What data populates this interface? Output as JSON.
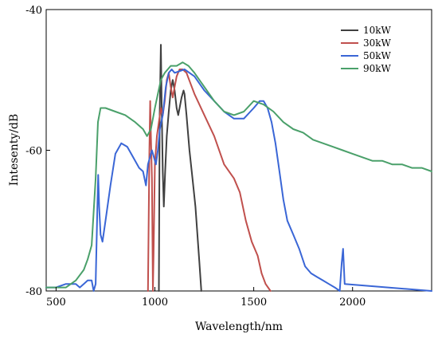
{
  "chart_data": {
    "type": "line",
    "title": "",
    "xlabel": "Wavelength/nm",
    "ylabel": "Intesenty/dB",
    "xlim": [
      450,
      2400
    ],
    "ylim": [
      -80,
      -40
    ],
    "xticks": [
      500,
      1000,
      1500,
      2000
    ],
    "yticks": [
      -40,
      -60,
      -80
    ],
    "grid": false,
    "legend": "top-right",
    "series": [
      {
        "name": "10kW",
        "color": "#404040",
        "points": [
          [
            1020,
            -80
          ],
          [
            1024,
            -55
          ],
          [
            1030,
            -45
          ],
          [
            1035,
            -55
          ],
          [
            1040,
            -63
          ],
          [
            1045,
            -68
          ],
          [
            1052,
            -63
          ],
          [
            1060,
            -58
          ],
          [
            1070,
            -54.5
          ],
          [
            1080,
            -51.5
          ],
          [
            1090,
            -50
          ],
          [
            1100,
            -51.5
          ],
          [
            1110,
            -54
          ],
          [
            1118,
            -55
          ],
          [
            1125,
            -54
          ],
          [
            1135,
            -52.5
          ],
          [
            1145,
            -51.5
          ],
          [
            1150,
            -52
          ],
          [
            1160,
            -55
          ],
          [
            1175,
            -60
          ],
          [
            1190,
            -64
          ],
          [
            1205,
            -68
          ],
          [
            1215,
            -72
          ],
          [
            1225,
            -76
          ],
          [
            1235,
            -80
          ]
        ]
      },
      {
        "name": "30kW",
        "color": "#c0504d",
        "points": [
          [
            965,
            -80
          ],
          [
            972,
            -60
          ],
          [
            976,
            -53
          ],
          [
            980,
            -58
          ],
          [
            985,
            -64
          ],
          [
            990,
            -80
          ],
          [
            993,
            -75
          ],
          [
            1000,
            -62
          ],
          [
            1010,
            -58
          ],
          [
            1020,
            -56
          ],
          [
            1030,
            -54
          ],
          [
            1040,
            -55
          ],
          [
            1050,
            -53
          ],
          [
            1060,
            -50
          ],
          [
            1070,
            -49
          ],
          [
            1080,
            -51
          ],
          [
            1090,
            -52.5
          ],
          [
            1100,
            -51
          ],
          [
            1110,
            -49.5
          ],
          [
            1125,
            -48.5
          ],
          [
            1140,
            -48.5
          ],
          [
            1160,
            -49
          ],
          [
            1180,
            -50.5
          ],
          [
            1200,
            -52
          ],
          [
            1250,
            -55
          ],
          [
            1300,
            -58
          ],
          [
            1350,
            -62
          ],
          [
            1400,
            -64
          ],
          [
            1430,
            -66
          ],
          [
            1460,
            -70
          ],
          [
            1490,
            -73
          ],
          [
            1520,
            -75
          ],
          [
            1540,
            -77.5
          ],
          [
            1560,
            -79
          ],
          [
            1585,
            -80
          ]
        ]
      },
      {
        "name": "50kW",
        "color": "#3a66d6",
        "points": [
          [
            450,
            -79.5
          ],
          [
            500,
            -79.5
          ],
          [
            550,
            -79
          ],
          [
            600,
            -79
          ],
          [
            620,
            -79.5
          ],
          [
            640,
            -79
          ],
          [
            660,
            -78.5
          ],
          [
            680,
            -78.5
          ],
          [
            690,
            -80
          ],
          [
            700,
            -79
          ],
          [
            705,
            -73
          ],
          [
            710,
            -67
          ],
          [
            713,
            -63.5
          ],
          [
            718,
            -68
          ],
          [
            725,
            -72
          ],
          [
            735,
            -73
          ],
          [
            750,
            -70
          ],
          [
            775,
            -65
          ],
          [
            800,
            -60.5
          ],
          [
            830,
            -59
          ],
          [
            860,
            -59.5
          ],
          [
            890,
            -61
          ],
          [
            920,
            -62.5
          ],
          [
            940,
            -63
          ],
          [
            955,
            -65
          ],
          [
            965,
            -62
          ],
          [
            975,
            -61
          ],
          [
            985,
            -60
          ],
          [
            995,
            -61
          ],
          [
            1005,
            -62
          ],
          [
            1015,
            -60
          ],
          [
            1025,
            -57
          ],
          [
            1040,
            -55
          ],
          [
            1055,
            -51
          ],
          [
            1070,
            -49
          ],
          [
            1085,
            -48.5
          ],
          [
            1100,
            -49
          ],
          [
            1150,
            -48.5
          ],
          [
            1200,
            -49.5
          ],
          [
            1250,
            -51.5
          ],
          [
            1300,
            -53
          ],
          [
            1350,
            -54.5
          ],
          [
            1400,
            -55.5
          ],
          [
            1450,
            -55.5
          ],
          [
            1500,
            -54
          ],
          [
            1530,
            -53
          ],
          [
            1550,
            -53
          ],
          [
            1570,
            -54
          ],
          [
            1590,
            -56
          ],
          [
            1610,
            -59
          ],
          [
            1630,
            -63
          ],
          [
            1650,
            -67
          ],
          [
            1670,
            -70
          ],
          [
            1700,
            -72
          ],
          [
            1730,
            -74
          ],
          [
            1760,
            -76.5
          ],
          [
            1790,
            -77.5
          ],
          [
            1820,
            -78
          ],
          [
            1850,
            -78.5
          ],
          [
            1880,
            -79
          ],
          [
            1910,
            -79.5
          ],
          [
            1935,
            -80
          ],
          [
            1945,
            -76
          ],
          [
            1952,
            -74
          ],
          [
            1960,
            -79
          ],
          [
            2400,
            -80
          ]
        ]
      },
      {
        "name": "90kW",
        "color": "#4aa06a",
        "points": [
          [
            450,
            -79.5
          ],
          [
            500,
            -79.5
          ],
          [
            550,
            -79.5
          ],
          [
            600,
            -78.5
          ],
          [
            640,
            -77
          ],
          [
            660,
            -75.5
          ],
          [
            680,
            -73.5
          ],
          [
            700,
            -64
          ],
          [
            712,
            -56
          ],
          [
            725,
            -54
          ],
          [
            750,
            -54
          ],
          [
            800,
            -54.5
          ],
          [
            850,
            -55
          ],
          [
            900,
            -56
          ],
          [
            940,
            -57
          ],
          [
            960,
            -58
          ],
          [
            980,
            -57
          ],
          [
            1000,
            -54
          ],
          [
            1015,
            -52
          ],
          [
            1030,
            -50
          ],
          [
            1050,
            -49
          ],
          [
            1080,
            -48
          ],
          [
            1110,
            -48
          ],
          [
            1140,
            -47.5
          ],
          [
            1170,
            -48
          ],
          [
            1200,
            -49
          ],
          [
            1250,
            -51
          ],
          [
            1300,
            -53
          ],
          [
            1350,
            -54.5
          ],
          [
            1400,
            -55
          ],
          [
            1450,
            -54.5
          ],
          [
            1500,
            -53
          ],
          [
            1550,
            -53.5
          ],
          [
            1600,
            -54.5
          ],
          [
            1650,
            -56
          ],
          [
            1700,
            -57
          ],
          [
            1750,
            -57.5
          ],
          [
            1800,
            -58.5
          ],
          [
            1850,
            -59
          ],
          [
            1900,
            -59.5
          ],
          [
            1950,
            -60
          ],
          [
            2000,
            -60.5
          ],
          [
            2050,
            -61
          ],
          [
            2100,
            -61.5
          ],
          [
            2150,
            -61.5
          ],
          [
            2200,
            -62
          ],
          [
            2250,
            -62
          ],
          [
            2300,
            -62.5
          ],
          [
            2350,
            -62.5
          ],
          [
            2400,
            -63
          ]
        ]
      }
    ]
  }
}
